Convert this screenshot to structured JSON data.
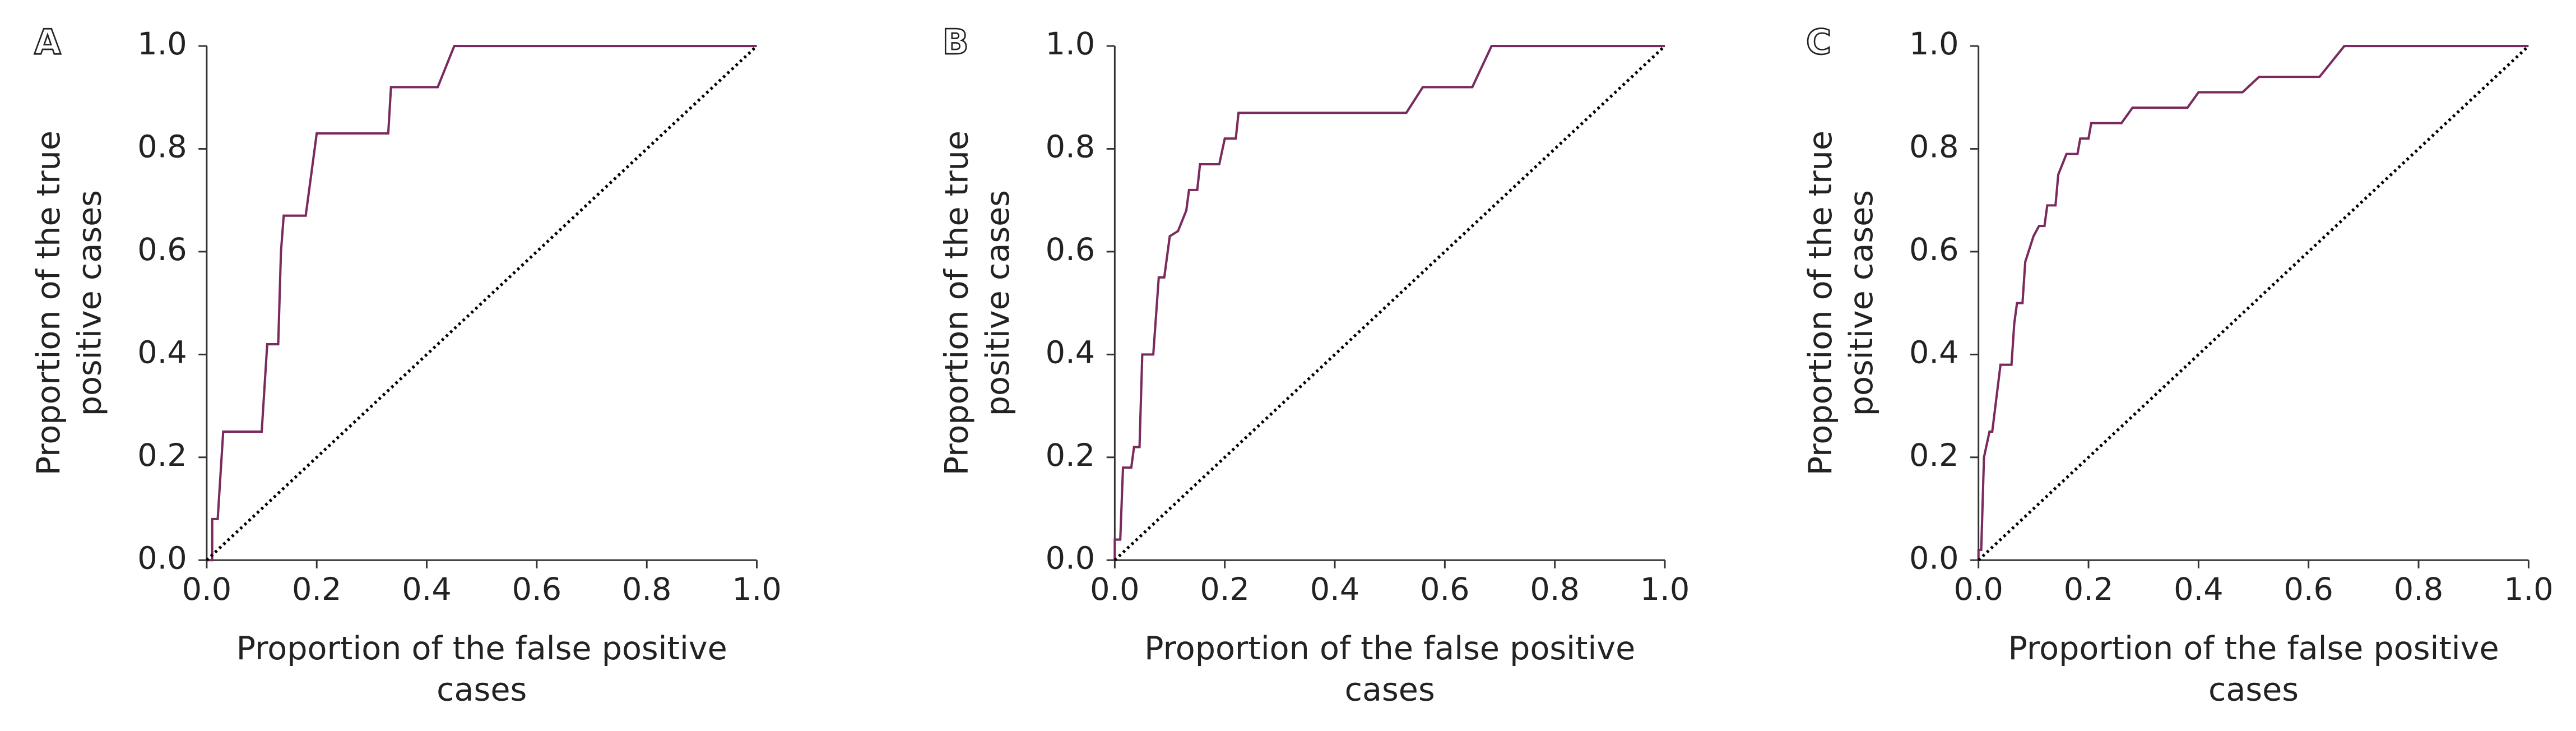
{
  "chart_data": [
    {
      "type": "line",
      "panel": "A",
      "xlabel": [
        "Proportion of the false positive",
        "cases"
      ],
      "ylabel": [
        "Proportion of the true",
        "positive cases"
      ],
      "xlim": [
        0,
        1
      ],
      "ylim": [
        0,
        1
      ],
      "xticks": [
        {
          "value": 0,
          "label": "0.0"
        },
        0.2,
        0.4,
        0.6,
        0.8,
        {
          "value": 1,
          "label": "1.0"
        }
      ],
      "yticks": [
        {
          "value": 0,
          "label": "0.0"
        },
        0.2,
        0.4,
        0.6,
        0.8,
        {
          "value": 1,
          "label": "1.0"
        }
      ],
      "series": [
        {
          "color": "#7a2a5c",
          "dash": "solid",
          "x": [
            0,
            0.01,
            0.01,
            0.02,
            0.03,
            0.1,
            0.11,
            0.13,
            0.135,
            0.14,
            0.18,
            0.2,
            0.33,
            0.335,
            0.42,
            0.45,
            1.0
          ],
          "values": [
            0,
            0,
            0.08,
            0.08,
            0.25,
            0.25,
            0.42,
            0.42,
            0.6,
            0.67,
            0.67,
            0.83,
            0.83,
            0.92,
            0.92,
            1.0,
            1.0
          ]
        },
        {
          "color": "#000000",
          "dash": "dotted",
          "x": [
            0,
            1
          ],
          "values": [
            0,
            1
          ]
        }
      ]
    },
    {
      "type": "line",
      "panel": "B",
      "xlabel": [
        "Proportion of the false positive",
        "cases"
      ],
      "ylabel": [
        "Proportion of the true",
        "positive cases"
      ],
      "xlim": [
        0,
        1
      ],
      "ylim": [
        0,
        1
      ],
      "xticks": [
        {
          "value": 0,
          "label": "0.0"
        },
        0.2,
        0.4,
        0.6,
        0.8,
        {
          "value": 1,
          "label": "1.0"
        }
      ],
      "yticks": [
        {
          "value": 0,
          "label": "0.0"
        },
        0.2,
        0.4,
        0.6,
        0.8,
        {
          "value": 1,
          "label": "1.0"
        }
      ],
      "series": [
        {
          "color": "#7a2a5c",
          "dash": "solid",
          "x": [
            0,
            0,
            0.01,
            0.015,
            0.03,
            0.035,
            0.045,
            0.05,
            0.07,
            0.08,
            0.09,
            0.1,
            0.115,
            0.13,
            0.135,
            0.15,
            0.155,
            0.19,
            0.2,
            0.22,
            0.225,
            0.53,
            0.56,
            0.65,
            0.685,
            1.0
          ],
          "values": [
            0,
            0.04,
            0.04,
            0.18,
            0.18,
            0.22,
            0.22,
            0.4,
            0.4,
            0.55,
            0.55,
            0.63,
            0.64,
            0.68,
            0.72,
            0.72,
            0.77,
            0.77,
            0.82,
            0.82,
            0.87,
            0.87,
            0.92,
            0.92,
            1.0,
            1.0
          ]
        },
        {
          "color": "#000000",
          "dash": "dotted",
          "x": [
            0,
            1
          ],
          "values": [
            0,
            1
          ]
        }
      ]
    },
    {
      "type": "line",
      "panel": "C",
      "xlabel": [
        "Proportion of the false positive",
        "cases"
      ],
      "ylabel": [
        "Proportion of the true",
        "positive cases"
      ],
      "xlim": [
        0,
        1
      ],
      "ylim": [
        0,
        1
      ],
      "xticks": [
        {
          "value": 0,
          "label": "0.0"
        },
        0.2,
        0.4,
        0.6,
        0.8,
        {
          "value": 1,
          "label": "1.0"
        }
      ],
      "yticks": [
        {
          "value": 0,
          "label": "0.0"
        },
        0.2,
        0.4,
        0.6,
        0.8,
        {
          "value": 1,
          "label": "1.0"
        }
      ],
      "series": [
        {
          "color": "#7a2a5c",
          "dash": "solid",
          "x": [
            0,
            0,
            0.005,
            0.01,
            0.02,
            0.025,
            0.04,
            0.06,
            0.065,
            0.07,
            0.08,
            0.085,
            0.1,
            0.11,
            0.12,
            0.125,
            0.14,
            0.145,
            0.16,
            0.18,
            0.185,
            0.2,
            0.205,
            0.26,
            0.28,
            0.38,
            0.4,
            0.48,
            0.51,
            0.62,
            0.665,
            1.0
          ],
          "values": [
            0,
            0.02,
            0.02,
            0.2,
            0.25,
            0.25,
            0.38,
            0.38,
            0.46,
            0.5,
            0.5,
            0.58,
            0.63,
            0.65,
            0.65,
            0.69,
            0.69,
            0.75,
            0.79,
            0.79,
            0.82,
            0.82,
            0.85,
            0.85,
            0.88,
            0.88,
            0.91,
            0.91,
            0.94,
            0.94,
            1.0,
            1.0
          ]
        },
        {
          "color": "#000000",
          "dash": "dotted",
          "x": [
            0,
            1
          ],
          "values": [
            0,
            1
          ]
        }
      ]
    }
  ]
}
